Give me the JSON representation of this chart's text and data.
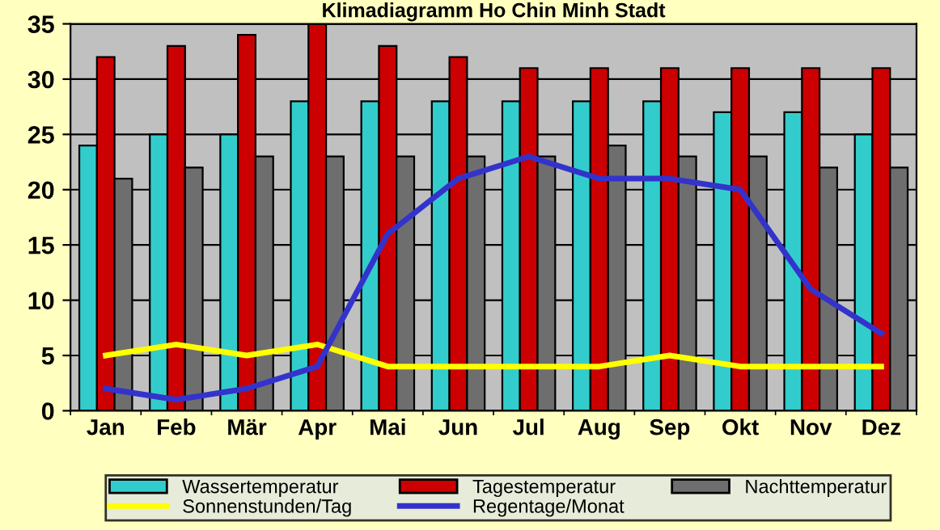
{
  "chart_data": {
    "type": "bar",
    "title": "Klimadiagramm Ho Chin Minh Stadt",
    "categories": [
      "Jan",
      "Feb",
      "Mär",
      "Apr",
      "Mai",
      "Jun",
      "Jul",
      "Aug",
      "Sep",
      "Okt",
      "Nov",
      "Dez"
    ],
    "series": [
      {
        "name": "Wassertemperatur",
        "color": "#33cccc",
        "values": [
          24,
          25,
          25,
          28,
          28,
          28,
          28,
          28,
          28,
          27,
          27,
          25
        ]
      },
      {
        "name": "Tagestemperatur",
        "color": "#cc0000",
        "values": [
          32,
          33,
          34,
          35,
          33,
          32,
          31,
          31,
          31,
          31,
          31,
          31
        ]
      },
      {
        "name": "Nachttemperatur",
        "color": "#6e6e6e",
        "values": [
          21,
          22,
          23,
          23,
          23,
          23,
          23,
          24,
          23,
          23,
          22,
          22
        ]
      },
      {
        "name": "Sonnenstunden/Tag",
        "type": "line",
        "color": "#ffff00",
        "values": [
          5,
          6,
          5,
          6,
          4,
          4,
          4,
          4,
          5,
          4,
          4,
          4
        ]
      },
      {
        "name": "Regentage/Monat",
        "type": "line",
        "color": "#3333cc",
        "values": [
          2,
          1,
          2,
          4,
          16,
          21,
          23,
          21,
          21,
          20,
          11,
          7
        ]
      }
    ],
    "ylim": [
      0,
      35
    ],
    "yticks": [
      0,
      5,
      10,
      15,
      20,
      25,
      30,
      35
    ],
    "grid": "y",
    "legend": "bottom",
    "marker": "none",
    "line_style": "solid"
  }
}
